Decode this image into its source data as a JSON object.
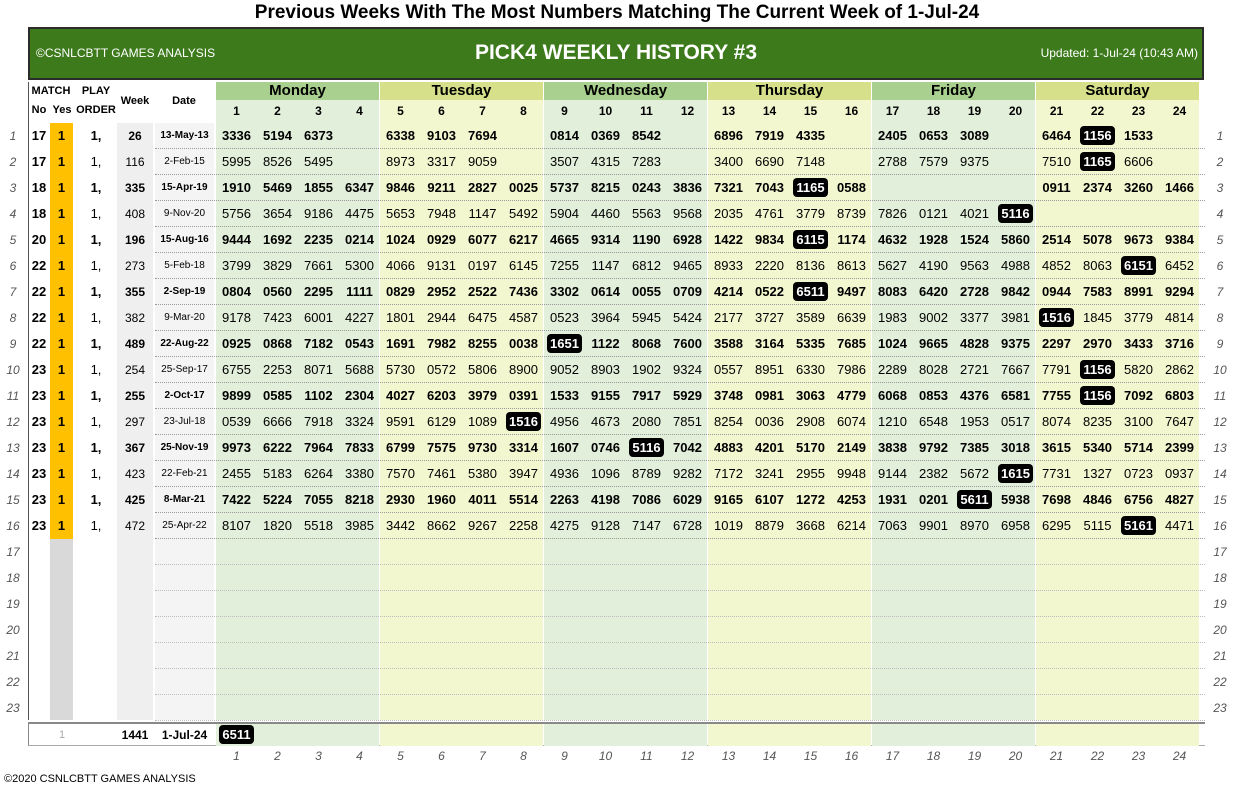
{
  "title": "Previous Weeks With The Most Numbers Matching The Current Week of 1-Jul-24",
  "banner": {
    "left": "©CSNLCBTT GAMES ANALYSIS",
    "center": "PICK4 WEEKLY HISTORY #3",
    "right": "Updated: 1-Jul-24 (10:43 AM)"
  },
  "headers": {
    "match": "MATCH",
    "no": "No",
    "yes": "Yes",
    "play": "PLAY",
    "order": "ORDER",
    "week": "Week",
    "date": "Date"
  },
  "days": [
    "Monday",
    "Tuesday",
    "Wednesday",
    "Thursday",
    "Friday",
    "Saturday"
  ],
  "col_numbers": [
    "1",
    "2",
    "3",
    "4",
    "5",
    "6",
    "7",
    "8",
    "9",
    "10",
    "11",
    "12",
    "13",
    "14",
    "15",
    "16",
    "17",
    "18",
    "19",
    "20",
    "21",
    "22",
    "23",
    "24"
  ],
  "rows": [
    {
      "n": "1",
      "no": "17",
      "yes": "1",
      "order": "1,",
      "week": "26",
      "date": "13-May-13",
      "bold": true,
      "cells": [
        "3336",
        "5194",
        "6373",
        "",
        "6338",
        "9103",
        "7694",
        "",
        "0814",
        "0369",
        "8542",
        "",
        "6896",
        "7919",
        "4335",
        "",
        "2405",
        "0653",
        "3089",
        "",
        "6464",
        "1156",
        "1533",
        ""
      ],
      "hl": [
        21
      ]
    },
    {
      "n": "2",
      "no": "17",
      "yes": "1",
      "order": "1,",
      "week": "116",
      "date": "2-Feb-15",
      "bold": false,
      "cells": [
        "5995",
        "8526",
        "5495",
        "",
        "8973",
        "3317",
        "9059",
        "",
        "3507",
        "4315",
        "7283",
        "",
        "3400",
        "6690",
        "7148",
        "",
        "2788",
        "7579",
        "9375",
        "",
        "7510",
        "1165",
        "6606",
        ""
      ],
      "hl": [
        21
      ]
    },
    {
      "n": "3",
      "no": "18",
      "yes": "1",
      "order": "1,",
      "week": "335",
      "date": "15-Apr-19",
      "bold": true,
      "cells": [
        "1910",
        "5469",
        "1855",
        "6347",
        "9846",
        "9211",
        "2827",
        "0025",
        "5737",
        "8215",
        "0243",
        "3836",
        "7321",
        "7043",
        "1165",
        "0588",
        "",
        "",
        "",
        "",
        "0911",
        "2374",
        "3260",
        "1466"
      ],
      "hl": [
        14
      ]
    },
    {
      "n": "4",
      "no": "18",
      "yes": "1",
      "order": "1,",
      "week": "408",
      "date": "9-Nov-20",
      "bold": false,
      "cells": [
        "5756",
        "3654",
        "9186",
        "4475",
        "5653",
        "7948",
        "1147",
        "5492",
        "5904",
        "4460",
        "5563",
        "9568",
        "2035",
        "4761",
        "3779",
        "8739",
        "7826",
        "0121",
        "4021",
        "5116",
        "",
        "",
        "",
        ""
      ],
      "hl": [
        19
      ]
    },
    {
      "n": "5",
      "no": "20",
      "yes": "1",
      "order": "1,",
      "week": "196",
      "date": "15-Aug-16",
      "bold": true,
      "cells": [
        "9444",
        "1692",
        "2235",
        "0214",
        "1024",
        "0929",
        "6077",
        "6217",
        "4665",
        "9314",
        "1190",
        "6928",
        "1422",
        "9834",
        "6115",
        "1174",
        "4632",
        "1928",
        "1524",
        "5860",
        "2514",
        "5078",
        "9673",
        "9384"
      ],
      "hl": [
        14
      ]
    },
    {
      "n": "6",
      "no": "22",
      "yes": "1",
      "order": "1,",
      "week": "273",
      "date": "5-Feb-18",
      "bold": false,
      "cells": [
        "3799",
        "3829",
        "7661",
        "5300",
        "4066",
        "9131",
        "0197",
        "6145",
        "7255",
        "1147",
        "6812",
        "9465",
        "8933",
        "2220",
        "8136",
        "8613",
        "5627",
        "4190",
        "9563",
        "4988",
        "4852",
        "8063",
        "6151",
        "6452"
      ],
      "hl": [
        22
      ]
    },
    {
      "n": "7",
      "no": "22",
      "yes": "1",
      "order": "1,",
      "week": "355",
      "date": "2-Sep-19",
      "bold": true,
      "cells": [
        "0804",
        "0560",
        "2295",
        "1111",
        "0829",
        "2952",
        "2522",
        "7436",
        "3302",
        "0614",
        "0055",
        "0709",
        "4214",
        "0522",
        "6511",
        "9497",
        "8083",
        "6420",
        "2728",
        "9842",
        "0944",
        "7583",
        "8991",
        "9294"
      ],
      "hl": [
        14
      ]
    },
    {
      "n": "8",
      "no": "22",
      "yes": "1",
      "order": "1,",
      "week": "382",
      "date": "9-Mar-20",
      "bold": false,
      "cells": [
        "9178",
        "7423",
        "6001",
        "4227",
        "1801",
        "2944",
        "6475",
        "4587",
        "0523",
        "3964",
        "5945",
        "5424",
        "2177",
        "3727",
        "3589",
        "6639",
        "1983",
        "9002",
        "3377",
        "3981",
        "1516",
        "1845",
        "3779",
        "4814"
      ],
      "hl": [
        20
      ]
    },
    {
      "n": "9",
      "no": "22",
      "yes": "1",
      "order": "1,",
      "week": "489",
      "date": "22-Aug-22",
      "bold": true,
      "cells": [
        "0925",
        "0868",
        "7182",
        "0543",
        "1691",
        "7982",
        "8255",
        "0038",
        "1651",
        "1122",
        "8068",
        "7600",
        "3588",
        "3164",
        "5335",
        "7685",
        "1024",
        "9665",
        "4828",
        "9375",
        "2297",
        "2970",
        "3433",
        "3716"
      ],
      "hl": [
        8
      ]
    },
    {
      "n": "10",
      "no": "23",
      "yes": "1",
      "order": "1,",
      "week": "254",
      "date": "25-Sep-17",
      "bold": false,
      "cells": [
        "6755",
        "2253",
        "8071",
        "5688",
        "5730",
        "0572",
        "5806",
        "8900",
        "9052",
        "8903",
        "1902",
        "9324",
        "0557",
        "8951",
        "6330",
        "7986",
        "2289",
        "8028",
        "2721",
        "7667",
        "7791",
        "1156",
        "5820",
        "2862"
      ],
      "hl": [
        21
      ]
    },
    {
      "n": "11",
      "no": "23",
      "yes": "1",
      "order": "1,",
      "week": "255",
      "date": "2-Oct-17",
      "bold": true,
      "cells": [
        "9899",
        "0585",
        "1102",
        "2304",
        "4027",
        "6203",
        "3979",
        "0391",
        "1533",
        "9155",
        "7917",
        "5929",
        "3748",
        "0981",
        "3063",
        "4779",
        "6068",
        "0853",
        "4376",
        "6581",
        "7755",
        "1156",
        "7092",
        "6803"
      ],
      "hl": [
        21
      ]
    },
    {
      "n": "12",
      "no": "23",
      "yes": "1",
      "order": "1,",
      "week": "297",
      "date": "23-Jul-18",
      "bold": false,
      "cells": [
        "0539",
        "6666",
        "7918",
        "3324",
        "9591",
        "6129",
        "1089",
        "1516",
        "4956",
        "4673",
        "2080",
        "7851",
        "8254",
        "0036",
        "2908",
        "6074",
        "1210",
        "6548",
        "1953",
        "0517",
        "8074",
        "8235",
        "3100",
        "7647"
      ],
      "hl": [
        7
      ]
    },
    {
      "n": "13",
      "no": "23",
      "yes": "1",
      "order": "1,",
      "week": "367",
      "date": "25-Nov-19",
      "bold": true,
      "cells": [
        "9973",
        "6222",
        "7964",
        "7833",
        "6799",
        "7575",
        "9730",
        "3314",
        "1607",
        "0746",
        "5116",
        "7042",
        "4883",
        "4201",
        "5170",
        "2149",
        "3838",
        "9792",
        "7385",
        "3018",
        "3615",
        "5340",
        "5714",
        "2399"
      ],
      "hl": [
        10
      ]
    },
    {
      "n": "14",
      "no": "23",
      "yes": "1",
      "order": "1,",
      "week": "423",
      "date": "22-Feb-21",
      "bold": false,
      "cells": [
        "2455",
        "5183",
        "6264",
        "3380",
        "7570",
        "7461",
        "5380",
        "3947",
        "4936",
        "1096",
        "8789",
        "9282",
        "7172",
        "3241",
        "2955",
        "9948",
        "9144",
        "2382",
        "5672",
        "1615",
        "7731",
        "1327",
        "0723",
        "0937"
      ],
      "hl": [
        19
      ]
    },
    {
      "n": "15",
      "no": "23",
      "yes": "1",
      "order": "1,",
      "week": "425",
      "date": "8-Mar-21",
      "bold": true,
      "cells": [
        "7422",
        "5224",
        "7055",
        "8218",
        "2930",
        "1960",
        "4011",
        "5514",
        "2263",
        "4198",
        "7086",
        "6029",
        "9165",
        "6107",
        "1272",
        "4253",
        "1931",
        "0201",
        "5611",
        "5938",
        "7698",
        "4846",
        "6756",
        "4827"
      ],
      "hl": [
        18
      ]
    },
    {
      "n": "16",
      "no": "23",
      "yes": "1",
      "order": "1,",
      "week": "472",
      "date": "25-Apr-22",
      "bold": false,
      "cells": [
        "8107",
        "1820",
        "5518",
        "3985",
        "3442",
        "8662",
        "9267",
        "2258",
        "4275",
        "9128",
        "7147",
        "6728",
        "1019",
        "8879",
        "3668",
        "6214",
        "7063",
        "9901",
        "8970",
        "6958",
        "6295",
        "5115",
        "5161",
        "4471"
      ],
      "hl": [
        22
      ]
    }
  ],
  "empty_rows": [
    "17",
    "18",
    "19",
    "20",
    "21",
    "22",
    "23"
  ],
  "current": {
    "match_no": "1",
    "week": "1441",
    "date": "1-Jul-24",
    "number": "6511"
  },
  "footer": "©2020 CSNLCBTT GAMES ANALYSIS",
  "colors": {
    "banner": "#3d7a1c",
    "yes": "#ffc000",
    "monday": "#e2efda",
    "tuesday": "#f2f7cf",
    "wednesday": "#e2efda",
    "thursday": "#f2f7cf",
    "friday": "#e2efda",
    "saturday": "#f2f7cf"
  }
}
